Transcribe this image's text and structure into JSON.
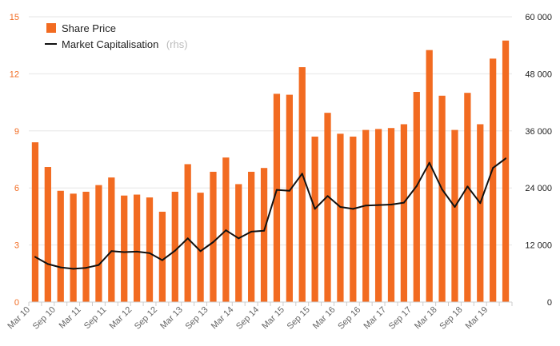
{
  "chart_data": {
    "type": "bar",
    "categories": [
      "Mar 10",
      "",
      "Sep 10",
      "",
      "Mar 11",
      "",
      "Sep 11",
      "",
      "Mar 12",
      "",
      "Sep 12",
      "",
      "Mar 13",
      "",
      "Sep 13",
      "",
      "Mar 14",
      "",
      "Sep 14",
      "",
      "Mar 15",
      "",
      "Sep 15",
      "",
      "Mar 16",
      "",
      "Sep 16",
      "",
      "Mar 17",
      "",
      "Sep 17",
      "",
      "Mar 18",
      "",
      "Sep 18",
      "",
      "Mar 19",
      ""
    ],
    "series": [
      {
        "name": "Share Price",
        "type": "bar",
        "axis": "left",
        "color": "#f26b21",
        "values": [
          8.4,
          7.1,
          5.85,
          5.7,
          5.8,
          6.15,
          6.55,
          5.6,
          5.65,
          5.5,
          4.75,
          5.8,
          7.25,
          5.75,
          6.85,
          7.6,
          6.2,
          6.85,
          7.05,
          10.95,
          10.9,
          12.35,
          8.7,
          9.95,
          8.85,
          8.7,
          9.05,
          9.1,
          9.15,
          9.35,
          11.05,
          13.25,
          10.85,
          9.05,
          11.0,
          9.35,
          12.8,
          13.75
        ]
      },
      {
        "name": "Market Capitalisation",
        "name_suffix": "(rhs)",
        "type": "line",
        "axis": "right",
        "color": "#111111",
        "values": [
          9500,
          8000,
          7300,
          7000,
          7200,
          7800,
          10700,
          10500,
          10600,
          10300,
          8800,
          10800,
          13400,
          10700,
          12600,
          15100,
          13400,
          14800,
          15000,
          23600,
          23400,
          27000,
          19600,
          22300,
          20000,
          19600,
          20300,
          20400,
          20500,
          20900,
          24400,
          29300,
          23700,
          20000,
          24300,
          20800,
          28200,
          30200
        ]
      }
    ],
    "y_left": {
      "min": 0,
      "max": 15,
      "ticks": [
        "0",
        "3",
        "6",
        "9",
        "12",
        "15"
      ]
    },
    "y_right": {
      "min": 0,
      "max": 60000,
      "ticks": [
        "0",
        "12 000",
        "24 000",
        "36 000",
        "48 000",
        "60 000"
      ]
    },
    "grid": true,
    "legend_position": "top-left"
  }
}
